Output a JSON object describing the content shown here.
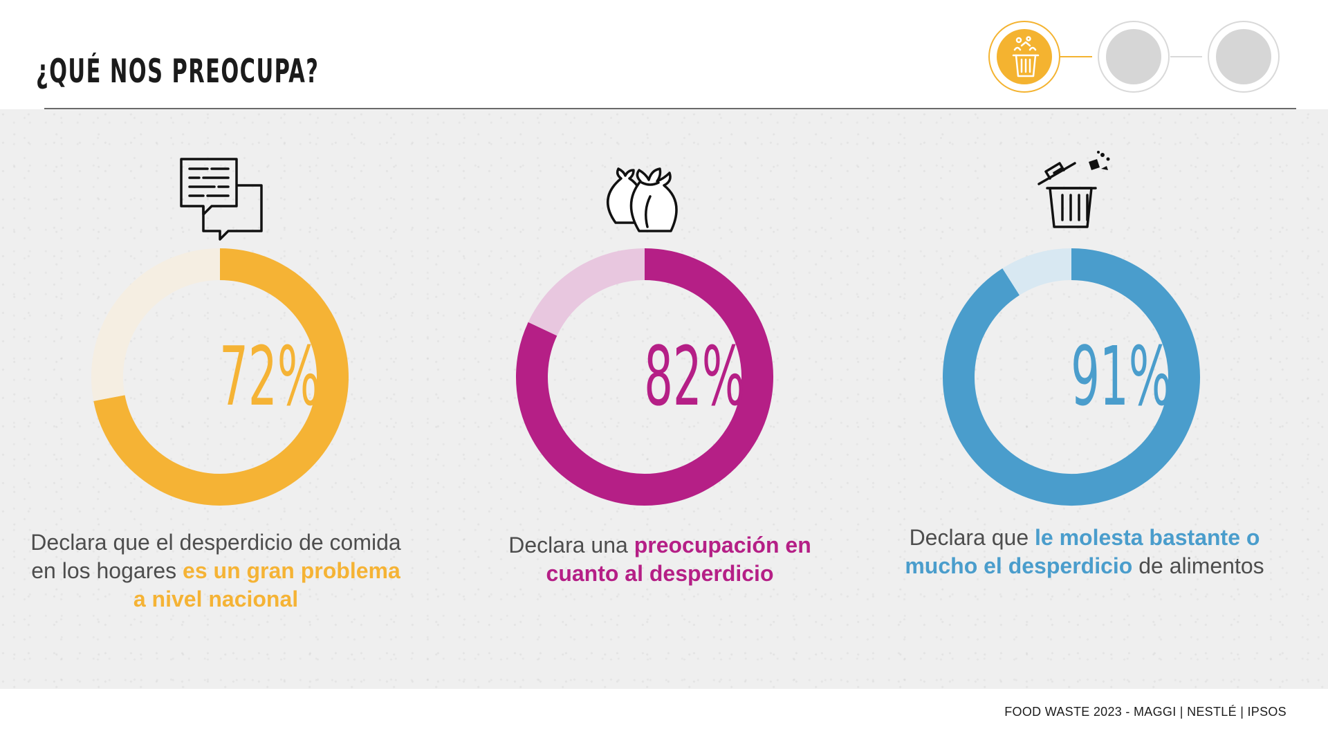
{
  "header": {
    "title": "¿QUÉ NOS PREOCUPA?"
  },
  "progress": {
    "steps": [
      {
        "state": "active",
        "icon": "trash-icon"
      },
      {
        "state": "inactive"
      },
      {
        "state": "inactive"
      }
    ],
    "accent": "#f4b330",
    "inactive_color": "#d6d6d6"
  },
  "chart_data": [
    {
      "type": "pie",
      "variant": "donut",
      "icon": "chat-bubbles-icon",
      "label": "72%",
      "values": [
        72,
        28
      ],
      "colors": [
        "#f5b335",
        "#f5eee2"
      ],
      "caption": {
        "lead": "Declara que el desperdicio de comida en los hogares ",
        "highlight": "es un gran problema a nivel nacional",
        "tail": ""
      }
    },
    {
      "type": "pie",
      "variant": "donut",
      "icon": "garbage-bags-icon",
      "label": "82%",
      "values": [
        82,
        18
      ],
      "colors": [
        "#b51f86",
        "#e8c7df"
      ],
      "caption": {
        "lead": "Declara una ",
        "highlight": "preocupación en cuanto al desperdicio",
        "tail": ""
      }
    },
    {
      "type": "pie",
      "variant": "donut",
      "icon": "trash-can-icon",
      "label": "91%",
      "values": [
        91,
        9
      ],
      "colors": [
        "#4a9dcc",
        "#d8e8f2"
      ],
      "caption": {
        "lead": "Declara que ",
        "highlight": "le molesta bastante o mucho el desperdicio",
        "tail": " de alimentos"
      }
    }
  ],
  "footer": {
    "credit": "FOOD WASTE 2023 - MAGGI | NESTLÉ | IPSOS"
  }
}
